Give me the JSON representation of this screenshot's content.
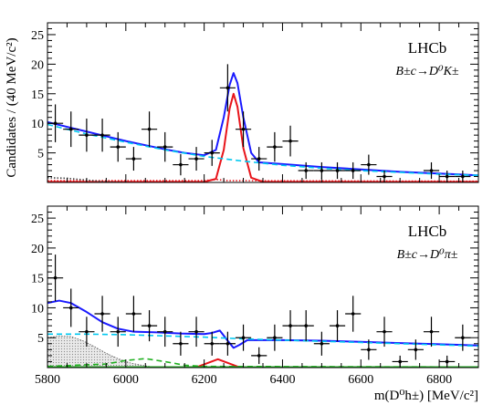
{
  "figure": {
    "x_axis_label": "m(D⁰h±) [MeV/c²]",
    "y_axis_label": "Candidates / (40 MeV/c²)"
  },
  "chart_data": [
    {
      "type": "scatter",
      "panel": "top",
      "experiment_label": "LHCb",
      "decay_label": "B±c→D⁰K±",
      "xlim": [
        5800,
        6900
      ],
      "ylim": [
        0,
        27
      ],
      "x_ticks": [
        5800,
        6000,
        6200,
        6400,
        6600,
        6800
      ],
      "y_ticks": [
        5,
        10,
        15,
        20,
        25
      ],
      "data_points": [
        {
          "x": 5820,
          "y": 10,
          "err": 3.2
        },
        {
          "x": 5860,
          "y": 9,
          "err": 3.0
        },
        {
          "x": 5900,
          "y": 8,
          "err": 2.8
        },
        {
          "x": 5940,
          "y": 8,
          "err": 2.8
        },
        {
          "x": 5980,
          "y": 6,
          "err": 2.5
        },
        {
          "x": 6020,
          "y": 4,
          "err": 2.0
        },
        {
          "x": 6060,
          "y": 9,
          "err": 3.0
        },
        {
          "x": 6100,
          "y": 6,
          "err": 2.5
        },
        {
          "x": 6140,
          "y": 3,
          "err": 1.8
        },
        {
          "x": 6180,
          "y": 4,
          "err": 2.0
        },
        {
          "x": 6220,
          "y": 5,
          "err": 2.2
        },
        {
          "x": 6260,
          "y": 16,
          "err": 4.0
        },
        {
          "x": 6300,
          "y": 9,
          "err": 3.0
        },
        {
          "x": 6340,
          "y": 4,
          "err": 2.0
        },
        {
          "x": 6380,
          "y": 6,
          "err": 2.5
        },
        {
          "x": 6420,
          "y": 7,
          "err": 2.6
        },
        {
          "x": 6460,
          "y": 2,
          "err": 1.4
        },
        {
          "x": 6500,
          "y": 2,
          "err": 1.4
        },
        {
          "x": 6540,
          "y": 2,
          "err": 1.4
        },
        {
          "x": 6580,
          "y": 2,
          "err": 1.4
        },
        {
          "x": 6620,
          "y": 3,
          "err": 1.7
        },
        {
          "x": 6660,
          "y": 1,
          "err": 1.0
        },
        {
          "x": 6780,
          "y": 2,
          "err": 1.4
        },
        {
          "x": 6820,
          "y": 1,
          "err": 1.0
        },
        {
          "x": 6860,
          "y": 1,
          "err": 1.0
        }
      ],
      "curves": [
        {
          "name": "",
          "color": "#1a1aff",
          "style": "solid",
          "points": [
            [
              5800,
              10.2
            ],
            [
              5850,
              9.4
            ],
            [
              5900,
              8.6
            ],
            [
              5950,
              7.8
            ],
            [
              6000,
              7.0
            ],
            [
              6050,
              6.3
            ],
            [
              6100,
              5.6
            ],
            [
              6150,
              5.0
            ],
            [
              6200,
              4.6
            ],
            [
              6230,
              5.5
            ],
            [
              6250,
              11.0
            ],
            [
              6265,
              16.5
            ],
            [
              6275,
              18.5
            ],
            [
              6285,
              16.8
            ],
            [
              6300,
              11.0
            ],
            [
              6320,
              5.0
            ],
            [
              6340,
              3.4
            ],
            [
              6400,
              3.1
            ],
            [
              6500,
              2.6
            ],
            [
              6600,
              2.2
            ],
            [
              6700,
              1.8
            ],
            [
              6800,
              1.5
            ],
            [
              6900,
              1.2
            ]
          ]
        },
        {
          "name": "",
          "color": "#e8141a",
          "style": "solid",
          "points": [
            [
              5800,
              0.1
            ],
            [
              6200,
              0.1
            ],
            [
              6230,
              0.6
            ],
            [
              6250,
              5.5
            ],
            [
              6265,
              12.5
            ],
            [
              6275,
              15.0
            ],
            [
              6285,
              12.8
            ],
            [
              6300,
              5.8
            ],
            [
              6320,
              0.8
            ],
            [
              6350,
              0.1
            ],
            [
              6900,
              0.1
            ]
          ]
        },
        {
          "name": "",
          "color": "#00c8f0",
          "style": "dashed",
          "points": [
            [
              5800,
              9.8
            ],
            [
              5900,
              8.2
            ],
            [
              6000,
              6.8
            ],
            [
              6100,
              5.5
            ],
            [
              6200,
              4.4
            ],
            [
              6300,
              3.6
            ],
            [
              6400,
              2.9
            ],
            [
              6500,
              2.4
            ],
            [
              6600,
              2.0
            ],
            [
              6700,
              1.7
            ],
            [
              6800,
              1.4
            ],
            [
              6900,
              1.2
            ]
          ]
        },
        {
          "name": "",
          "color": "#e8141a",
          "style": "dotted",
          "points": [
            [
              5800,
              0.3
            ],
            [
              6000,
              0.3
            ],
            [
              6200,
              0.3
            ],
            [
              6230,
              0.5
            ],
            [
              6260,
              0.3
            ],
            [
              6900,
              0.2
            ]
          ]
        },
        {
          "name": "",
          "color": "#444444",
          "style": "dotted",
          "points": [
            [
              5800,
              0.8
            ],
            [
              5850,
              0.7
            ],
            [
              5900,
              0.4
            ],
            [
              5950,
              0.1
            ],
            [
              6000,
              0.0
            ]
          ]
        }
      ]
    },
    {
      "type": "scatter",
      "panel": "bottom",
      "experiment_label": "LHCb",
      "decay_label": "B±c→D⁰π±",
      "xlim": [
        5800,
        6900
      ],
      "ylim": [
        0,
        27
      ],
      "x_ticks": [
        5800,
        6000,
        6200,
        6400,
        6600,
        6800
      ],
      "y_ticks": [
        5,
        10,
        15,
        20,
        25
      ],
      "data_points": [
        {
          "x": 5820,
          "y": 15,
          "err": 3.9
        },
        {
          "x": 5860,
          "y": 10,
          "err": 3.2
        },
        {
          "x": 5900,
          "y": 6,
          "err": 2.5
        },
        {
          "x": 5940,
          "y": 9,
          "err": 3.0
        },
        {
          "x": 5980,
          "y": 6,
          "err": 2.5
        },
        {
          "x": 6020,
          "y": 9,
          "err": 3.0
        },
        {
          "x": 6060,
          "y": 7,
          "err": 2.6
        },
        {
          "x": 6100,
          "y": 6,
          "err": 2.5
        },
        {
          "x": 6140,
          "y": 4,
          "err": 2.0
        },
        {
          "x": 6180,
          "y": 6,
          "err": 2.5
        },
        {
          "x": 6220,
          "y": 4,
          "err": 2.0
        },
        {
          "x": 6260,
          "y": 4,
          "err": 2.0
        },
        {
          "x": 6300,
          "y": 5,
          "err": 2.2
        },
        {
          "x": 6340,
          "y": 2,
          "err": 1.4
        },
        {
          "x": 6380,
          "y": 5,
          "err": 2.2
        },
        {
          "x": 6420,
          "y": 7,
          "err": 2.6
        },
        {
          "x": 6460,
          "y": 7,
          "err": 2.6
        },
        {
          "x": 6500,
          "y": 4,
          "err": 2.0
        },
        {
          "x": 6540,
          "y": 7,
          "err": 2.6
        },
        {
          "x": 6580,
          "y": 9,
          "err": 3.0
        },
        {
          "x": 6620,
          "y": 3,
          "err": 1.7
        },
        {
          "x": 6660,
          "y": 6,
          "err": 2.5
        },
        {
          "x": 6700,
          "y": 1,
          "err": 1.0
        },
        {
          "x": 6740,
          "y": 3,
          "err": 1.7
        },
        {
          "x": 6780,
          "y": 6,
          "err": 2.5
        },
        {
          "x": 6820,
          "y": 1,
          "err": 1.0
        },
        {
          "x": 6860,
          "y": 5,
          "err": 2.2
        }
      ],
      "curves": [
        {
          "name": "",
          "color": "#1a1aff",
          "style": "solid",
          "points": [
            [
              5800,
              10.8
            ],
            [
              5830,
              11.2
            ],
            [
              5860,
              10.8
            ],
            [
              5900,
              9.3
            ],
            [
              5940,
              7.6
            ],
            [
              5980,
              6.5
            ],
            [
              6020,
              6.0
            ],
            [
              6080,
              5.9
            ],
            [
              6140,
              5.7
            ],
            [
              6200,
              5.6
            ],
            [
              6220,
              5.8
            ],
            [
              6240,
              6.2
            ],
            [
              6260,
              4.5
            ],
            [
              6275,
              3.3
            ],
            [
              6290,
              3.8
            ],
            [
              6310,
              4.6
            ],
            [
              6400,
              4.6
            ],
            [
              6500,
              4.5
            ],
            [
              6600,
              4.3
            ],
            [
              6700,
              4.1
            ],
            [
              6800,
              3.9
            ],
            [
              6900,
              3.7
            ]
          ]
        },
        {
          "name": "",
          "color": "#00c8f0",
          "style": "dashed",
          "points": [
            [
              5800,
              5.6
            ],
            [
              5900,
              5.6
            ],
            [
              6000,
              5.5
            ],
            [
              6100,
              5.3
            ],
            [
              6200,
              5.1
            ],
            [
              6300,
              4.8
            ],
            [
              6400,
              4.6
            ],
            [
              6500,
              4.4
            ],
            [
              6600,
              4.2
            ],
            [
              6700,
              4.0
            ],
            [
              6800,
              3.8
            ],
            [
              6900,
              3.6
            ]
          ]
        },
        {
          "name": "",
          "color": "#e8141a",
          "style": "solid",
          "points": [
            [
              5800,
              0.05
            ],
            [
              6180,
              0.05
            ],
            [
              6210,
              0.8
            ],
            [
              6235,
              1.4
            ],
            [
              6260,
              0.8
            ],
            [
              6290,
              0.05
            ],
            [
              6900,
              0.05
            ]
          ]
        },
        {
          "name": "",
          "color": "#1fb01f",
          "style": "dashed",
          "points": [
            [
              5800,
              0.2
            ],
            [
              5950,
              0.6
            ],
            [
              6000,
              1.2
            ],
            [
              6050,
              1.5
            ],
            [
              6100,
              1.0
            ],
            [
              6150,
              0.4
            ],
            [
              6200,
              0.2
            ],
            [
              6900,
              0.1
            ]
          ]
        },
        {
          "name": "",
          "color": "#1fb01f",
          "style": "solid",
          "points": [
            [
              5800,
              0.08
            ],
            [
              6900,
              0.08
            ]
          ]
        }
      ],
      "shaded_background": {
        "color": "#bdbdbd",
        "points": [
          [
            5800,
            5.0
          ],
          [
            5830,
            5.3
          ],
          [
            5860,
            5.2
          ],
          [
            5890,
            4.5
          ],
          [
            5920,
            3.5
          ],
          [
            5950,
            2.4
          ],
          [
            5980,
            1.5
          ],
          [
            6010,
            0.8
          ],
          [
            6040,
            0.4
          ],
          [
            6070,
            0.1
          ],
          [
            6090,
            0.0
          ]
        ]
      }
    }
  ]
}
